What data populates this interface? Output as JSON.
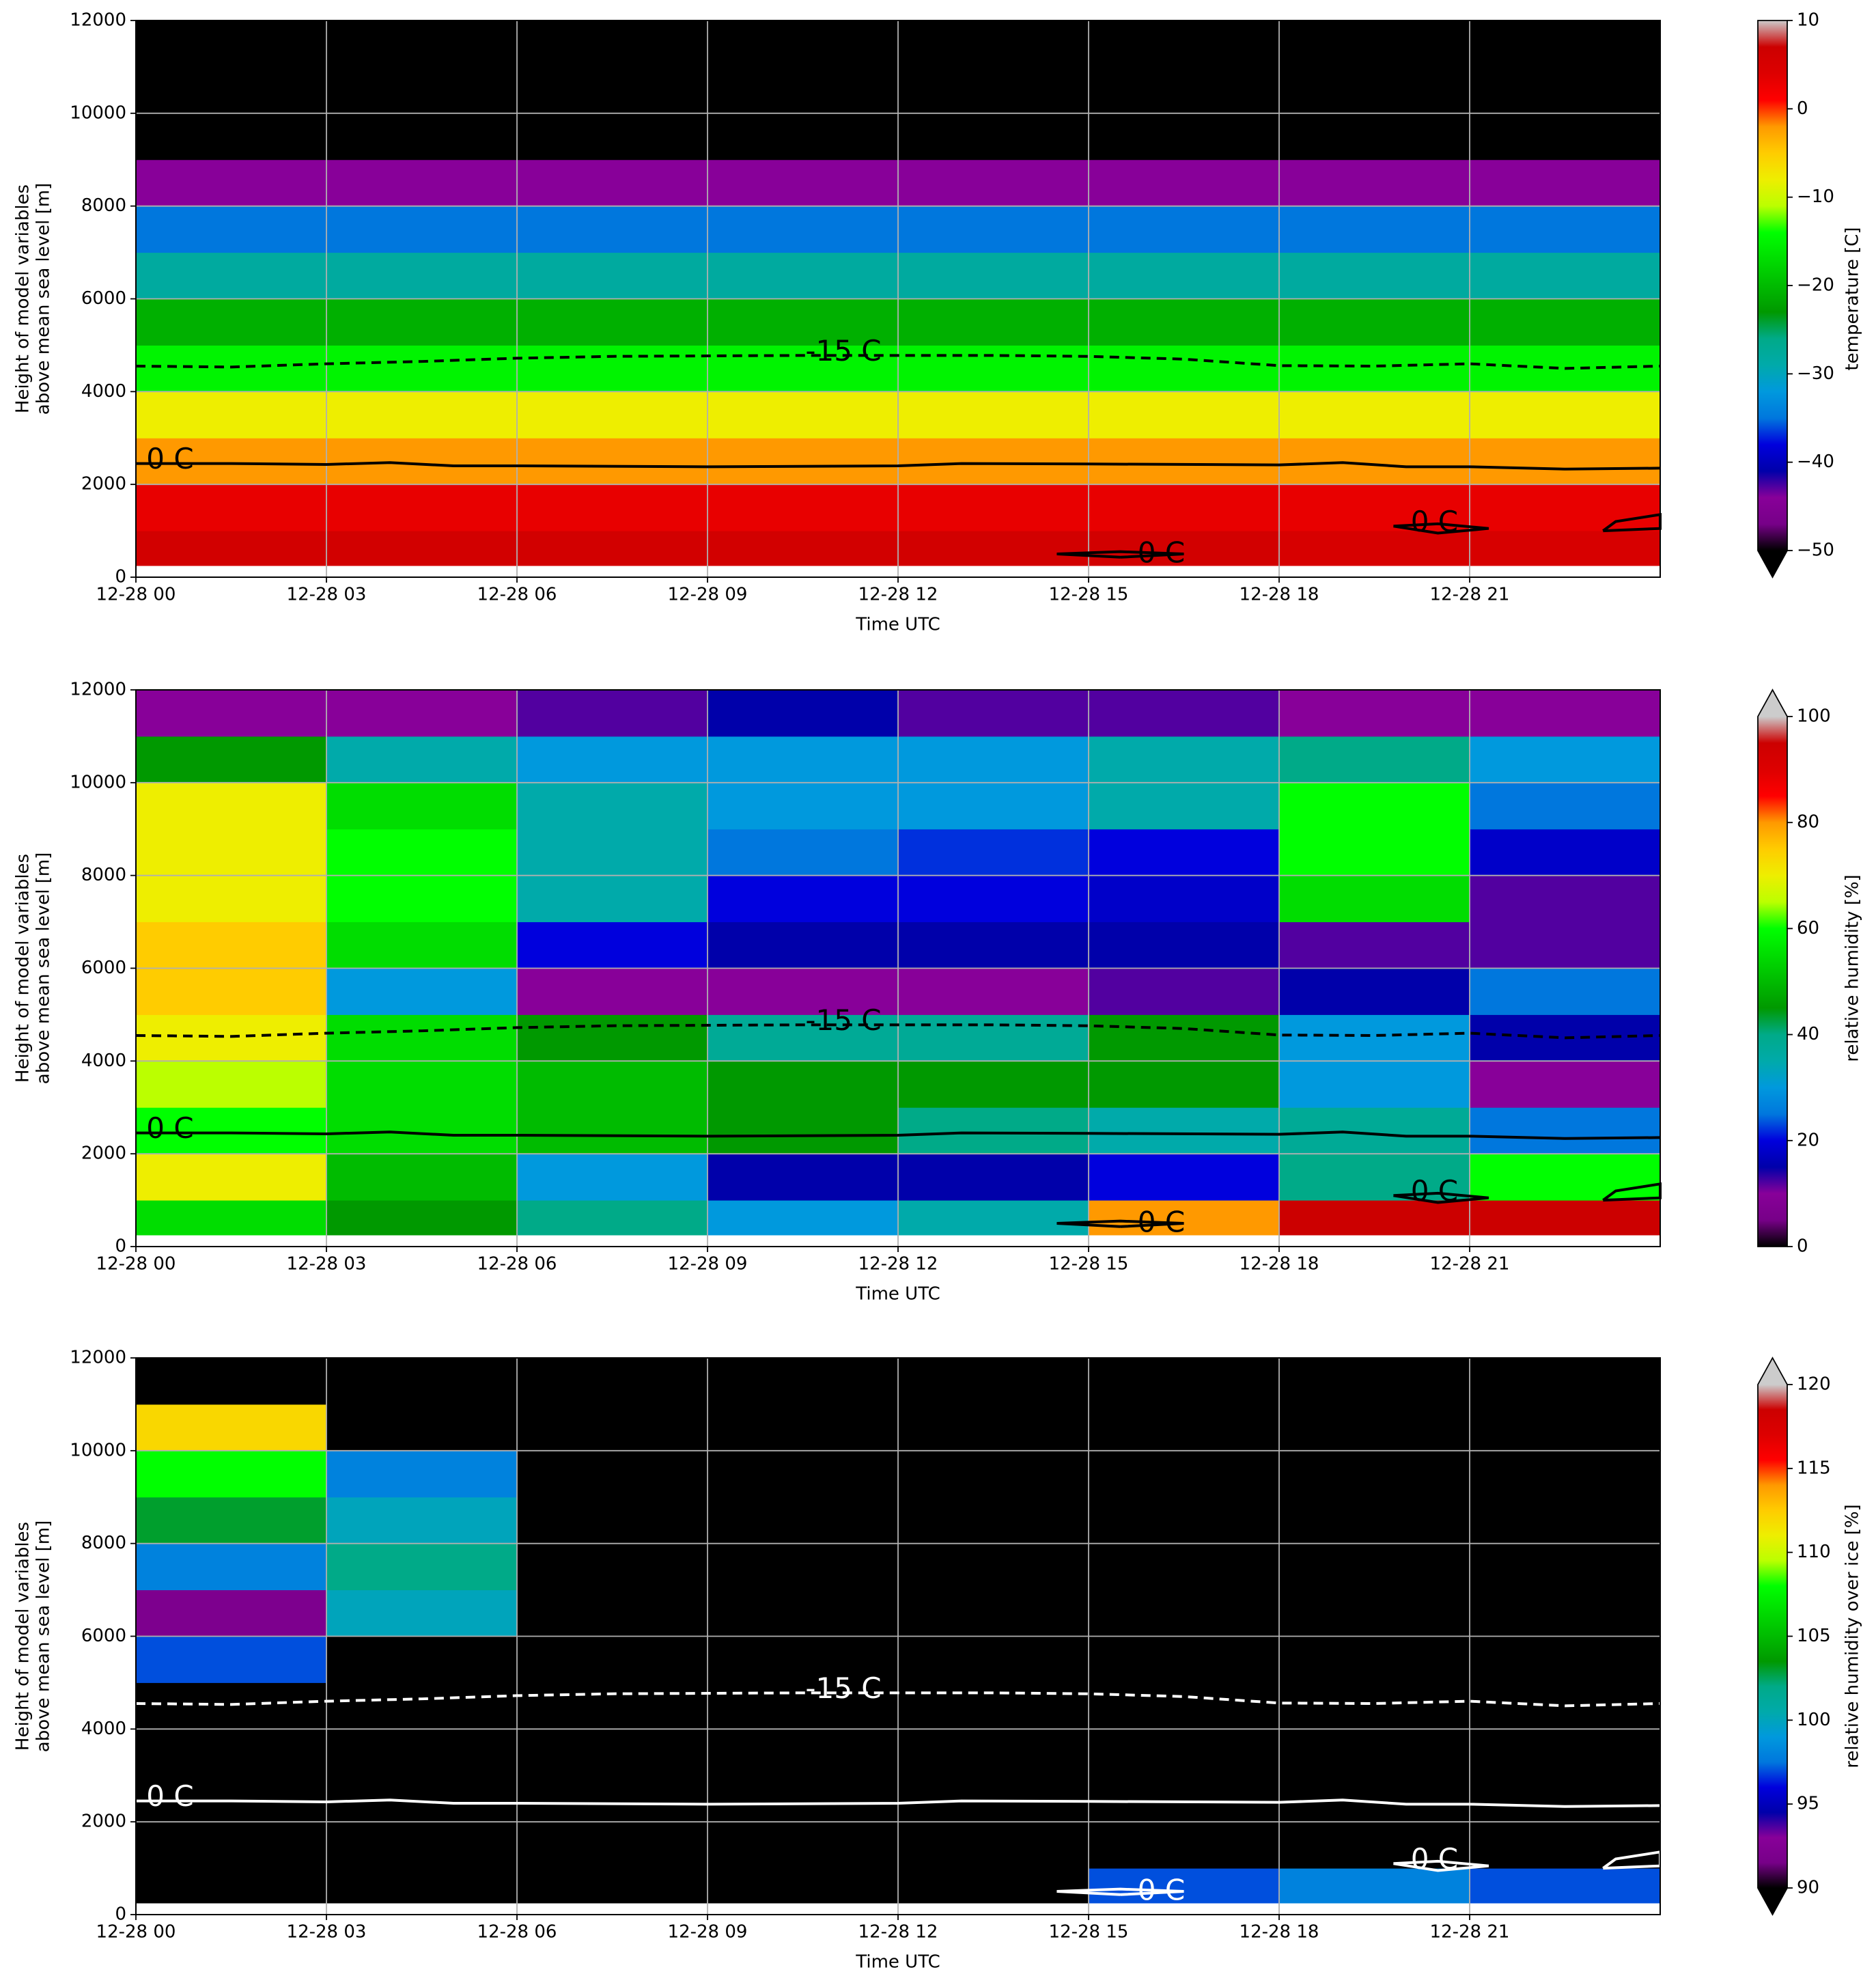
{
  "chart_data": [
    {
      "type": "heatmap",
      "colormap": "nipy_spectral",
      "contour_color": "#000000",
      "x_label": "Time UTC",
      "y_label": [
        "Height of model variables",
        "above mean sea level [m]"
      ],
      "xlim": [
        0,
        24
      ],
      "ylim": [
        0,
        12000
      ],
      "grid": true,
      "xticks": [
        {
          "value": 0,
          "label": "12-28 00"
        },
        {
          "value": 3,
          "label": "12-28 03"
        },
        {
          "value": 6,
          "label": "12-28 06"
        },
        {
          "value": 9,
          "label": "12-28 09"
        },
        {
          "value": 12,
          "label": "12-28 12"
        },
        {
          "value": 15,
          "label": "12-28 15"
        },
        {
          "value": 18,
          "label": "12-28 18"
        },
        {
          "value": 21,
          "label": "12-28 21"
        }
      ],
      "yticks": [
        0,
        2000,
        4000,
        6000,
        8000,
        10000,
        12000
      ],
      "x_edges": [
        0,
        3,
        6,
        9,
        12,
        15,
        18,
        21,
        24
      ],
      "y_edges": [
        250,
        1000,
        2000,
        3000,
        4000,
        5000,
        6000,
        7000,
        8000,
        9000,
        10000,
        11000,
        12000
      ],
      "z": [
        [
          6,
          6,
          6,
          6,
          6,
          6,
          5,
          5
        ],
        [
          3,
          3,
          3,
          3,
          3,
          3,
          3,
          3
        ],
        [
          -2,
          -2,
          -2,
          -2,
          -2,
          -2,
          -2,
          -2
        ],
        [
          -8,
          -8,
          -8,
          -8,
          -8,
          -8,
          -8,
          -8
        ],
        [
          -15,
          -15,
          -15,
          -15,
          -15,
          -15,
          -15,
          -15
        ],
        [
          -21,
          -21,
          -21,
          -21,
          -21,
          -21,
          -21,
          -21
        ],
        [
          -28,
          -28,
          -28,
          -28,
          -28,
          -28,
          -28,
          -28
        ],
        [
          -35,
          -35,
          -35,
          -35,
          -35,
          -35,
          -35,
          -35
        ],
        [
          -44,
          -44,
          -44,
          -44,
          -44,
          -44,
          -44,
          -44
        ],
        [
          -55,
          -55,
          -55,
          -55,
          -55,
          -55,
          -55,
          -55
        ],
        [
          -58,
          -58,
          -58,
          -58,
          -58,
          -58,
          -58,
          -58
        ],
        [
          -60,
          -60,
          -60,
          -60,
          -60,
          -60,
          -60,
          -60
        ]
      ],
      "colorbar": {
        "label": "temperature [C]",
        "lim": [
          -50,
          10
        ],
        "extend": "min",
        "ticks": [
          {
            "value": -50,
            "label": "−50"
          },
          {
            "value": -40,
            "label": "−40"
          },
          {
            "value": -30,
            "label": "−30"
          },
          {
            "value": -20,
            "label": "−20"
          },
          {
            "value": -10,
            "label": "−10"
          },
          0,
          10
        ]
      },
      "contours": [
        {
          "label": "-15 C",
          "style": "dashed",
          "x": [
            0,
            1.5,
            3,
            4.5,
            6,
            7.5,
            9,
            10.5,
            12,
            13.5,
            15,
            16.5,
            18,
            19.5,
            21,
            22.5,
            24
          ],
          "y": [
            4550,
            4530,
            4600,
            4650,
            4720,
            4760,
            4770,
            4780,
            4780,
            4780,
            4760,
            4700,
            4560,
            4550,
            4600,
            4500,
            4550
          ]
        },
        {
          "label": "0 C",
          "style": "solid",
          "x": [
            0,
            1.5,
            3,
            4,
            5,
            6,
            9,
            12,
            13,
            15,
            18,
            19,
            20,
            21,
            22.5,
            24
          ],
          "y": [
            2450,
            2450,
            2430,
            2470,
            2400,
            2400,
            2380,
            2400,
            2450,
            2440,
            2420,
            2470,
            2380,
            2380,
            2330,
            2350
          ]
        },
        {
          "label": "0 C",
          "style": "solid",
          "x": [
            15.5,
            16.5,
            15.5,
            14.5,
            15.5
          ],
          "y": [
            430,
            500,
            550,
            500,
            430
          ]
        },
        {
          "label": "0 C",
          "style": "solid",
          "x": [
            19.8,
            20.5,
            21.3,
            20.5,
            19.8
          ],
          "y": [
            1100,
            1150,
            1050,
            950,
            1100
          ]
        },
        {
          "style": "solid",
          "x": [
            23.1,
            23.3,
            24,
            24,
            23.1,
            23.1
          ],
          "y": [
            1000,
            1200,
            1350,
            1050,
            1000,
            1000
          ]
        }
      ]
    },
    {
      "type": "heatmap",
      "colormap": "nipy_spectral",
      "contour_color": "#000000",
      "x_label": "Time UTC",
      "y_label": [
        "Height of model variables",
        "above mean sea level [m]"
      ],
      "xlim": [
        0,
        24
      ],
      "ylim": [
        0,
        12000
      ],
      "grid": true,
      "xticks": [
        {
          "value": 0,
          "label": "12-28 00"
        },
        {
          "value": 3,
          "label": "12-28 03"
        },
        {
          "value": 6,
          "label": "12-28 06"
        },
        {
          "value": 9,
          "label": "12-28 09"
        },
        {
          "value": 12,
          "label": "12-28 12"
        },
        {
          "value": 15,
          "label": "12-28 15"
        },
        {
          "value": 18,
          "label": "12-28 18"
        },
        {
          "value": 21,
          "label": "12-28 21"
        }
      ],
      "yticks": [
        0,
        2000,
        4000,
        6000,
        8000,
        10000,
        12000
      ],
      "x_edges": [
        0,
        3,
        6,
        9,
        12,
        15,
        18,
        21,
        24
      ],
      "y_edges": [
        250,
        1000,
        2000,
        3000,
        4000,
        5000,
        6000,
        7000,
        8000,
        9000,
        10000,
        11000,
        12000
      ],
      "z": [
        [
          55,
          45,
          40,
          30,
          35,
          80,
          95,
          95
        ],
        [
          70,
          50,
          30,
          15,
          15,
          20,
          40,
          60
        ],
        [
          60,
          55,
          50,
          45,
          40,
          35,
          38,
          25
        ],
        [
          65,
          55,
          50,
          45,
          45,
          45,
          30,
          10
        ],
        [
          70,
          55,
          45,
          38,
          38,
          45,
          30,
          15
        ],
        [
          75,
          30,
          10,
          10,
          10,
          12,
          15,
          25
        ],
        [
          75,
          55,
          20,
          15,
          15,
          15,
          12,
          12
        ],
        [
          70,
          60,
          35,
          20,
          20,
          18,
          55,
          12
        ],
        [
          70,
          60,
          35,
          25,
          22,
          20,
          60,
          18
        ],
        [
          70,
          55,
          35,
          30,
          30,
          35,
          60,
          25
        ],
        [
          45,
          35,
          30,
          30,
          30,
          35,
          40,
          30
        ],
        [
          10,
          10,
          12,
          15,
          12,
          12,
          10,
          10
        ]
      ],
      "colorbar": {
        "label": "relative humidity [%]",
        "lim": [
          0,
          100
        ],
        "extend": "max",
        "ticks": [
          0,
          20,
          40,
          60,
          80,
          100
        ]
      },
      "contours": [
        {
          "label": "-15 C",
          "style": "dashed",
          "x": [
            0,
            1.5,
            3,
            4.5,
            6,
            7.5,
            9,
            10.5,
            12,
            13.5,
            15,
            16.5,
            18,
            19.5,
            21,
            22.5,
            24
          ],
          "y": [
            4550,
            4530,
            4600,
            4650,
            4720,
            4760,
            4770,
            4780,
            4780,
            4780,
            4760,
            4700,
            4560,
            4550,
            4600,
            4500,
            4550
          ]
        },
        {
          "label": "0 C",
          "style": "solid",
          "x": [
            0,
            1.5,
            3,
            4,
            5,
            6,
            9,
            12,
            13,
            15,
            18,
            19,
            20,
            21,
            22.5,
            24
          ],
          "y": [
            2450,
            2450,
            2430,
            2470,
            2400,
            2400,
            2380,
            2400,
            2450,
            2440,
            2420,
            2470,
            2380,
            2380,
            2330,
            2350
          ]
        },
        {
          "label": "0 C",
          "style": "solid",
          "x": [
            15.5,
            16.5,
            15.5,
            14.5,
            15.5
          ],
          "y": [
            430,
            500,
            550,
            500,
            430
          ]
        },
        {
          "label": "0 C",
          "style": "solid",
          "x": [
            19.8,
            20.5,
            21.3,
            20.5,
            19.8
          ],
          "y": [
            1100,
            1150,
            1050,
            950,
            1100
          ]
        },
        {
          "style": "solid",
          "x": [
            23.1,
            23.3,
            24,
            24,
            23.1,
            23.1
          ],
          "y": [
            1000,
            1200,
            1350,
            1050,
            1000,
            1000
          ]
        }
      ]
    },
    {
      "type": "heatmap",
      "colormap": "nipy_spectral",
      "contour_color": "#ffffff",
      "x_label": "Time UTC",
      "y_label": [
        "Height of model variables",
        "above mean sea level [m]"
      ],
      "xlim": [
        0,
        24
      ],
      "ylim": [
        0,
        12000
      ],
      "grid": true,
      "xticks": [
        {
          "value": 0,
          "label": "12-28 00"
        },
        {
          "value": 3,
          "label": "12-28 03"
        },
        {
          "value": 6,
          "label": "12-28 06"
        },
        {
          "value": 9,
          "label": "12-28 09"
        },
        {
          "value": 12,
          "label": "12-28 12"
        },
        {
          "value": 15,
          "label": "12-28 15"
        },
        {
          "value": 18,
          "label": "12-28 18"
        },
        {
          "value": 21,
          "label": "12-28 21"
        }
      ],
      "yticks": [
        0,
        2000,
        4000,
        6000,
        8000,
        10000,
        12000
      ],
      "x_edges": [
        0,
        3,
        6,
        9,
        12,
        15,
        18,
        21,
        24
      ],
      "y_edges": [
        250,
        1000,
        2000,
        3000,
        4000,
        5000,
        6000,
        7000,
        8000,
        9000,
        10000,
        11000,
        12000
      ],
      "z": [
        [
          85,
          85,
          85,
          85,
          85,
          97,
          98,
          97
        ],
        [
          85,
          85,
          85,
          85,
          85,
          85,
          85,
          85
        ],
        [
          85,
          85,
          85,
          85,
          85,
          85,
          85,
          85
        ],
        [
          85,
          85,
          85,
          85,
          85,
          85,
          85,
          85
        ],
        [
          85,
          85,
          85,
          85,
          85,
          85,
          85,
          85
        ],
        [
          97,
          85,
          85,
          85,
          85,
          85,
          85,
          85
        ],
        [
          92,
          100,
          85,
          85,
          85,
          85,
          85,
          85
        ],
        [
          98,
          102,
          85,
          85,
          85,
          85,
          85,
          85
        ],
        [
          103,
          100,
          85,
          85,
          85,
          85,
          85,
          85
        ],
        [
          108,
          98,
          85,
          85,
          85,
          85,
          85,
          85
        ],
        [
          112,
          85,
          85,
          85,
          85,
          85,
          85,
          85
        ],
        [
          85,
          85,
          85,
          85,
          85,
          85,
          85,
          85
        ]
      ],
      "colorbar": {
        "label": "relative humidity over ice [%]",
        "lim": [
          90,
          120
        ],
        "extend": "both",
        "ticks": [
          90,
          95,
          100,
          105,
          110,
          115,
          120
        ]
      },
      "contours": [
        {
          "label": "-15 C",
          "style": "dashed",
          "x": [
            0,
            1.5,
            3,
            4.5,
            6,
            7.5,
            9,
            10.5,
            12,
            13.5,
            15,
            16.5,
            18,
            19.5,
            21,
            22.5,
            24
          ],
          "y": [
            4550,
            4530,
            4600,
            4650,
            4720,
            4760,
            4770,
            4780,
            4780,
            4780,
            4760,
            4700,
            4560,
            4550,
            4600,
            4500,
            4550
          ]
        },
        {
          "label": "0 C",
          "style": "solid",
          "x": [
            0,
            1.5,
            3,
            4,
            5,
            6,
            9,
            12,
            13,
            15,
            18,
            19,
            20,
            21,
            22.5,
            24
          ],
          "y": [
            2450,
            2450,
            2430,
            2470,
            2400,
            2400,
            2380,
            2400,
            2450,
            2440,
            2420,
            2470,
            2380,
            2380,
            2330,
            2350
          ]
        },
        {
          "label": "0 C",
          "style": "solid",
          "x": [
            15.5,
            16.5,
            15.5,
            14.5,
            15.5
          ],
          "y": [
            430,
            500,
            550,
            500,
            430
          ]
        },
        {
          "label": "0 C",
          "style": "solid",
          "x": [
            19.8,
            20.5,
            21.3,
            20.5,
            19.8
          ],
          "y": [
            1100,
            1150,
            1050,
            950,
            1100
          ]
        },
        {
          "style": "solid",
          "x": [
            23.1,
            23.3,
            24,
            24,
            23.1,
            23.1
          ],
          "y": [
            1000,
            1200,
            1350,
            1050,
            1000,
            1000
          ]
        }
      ]
    }
  ]
}
